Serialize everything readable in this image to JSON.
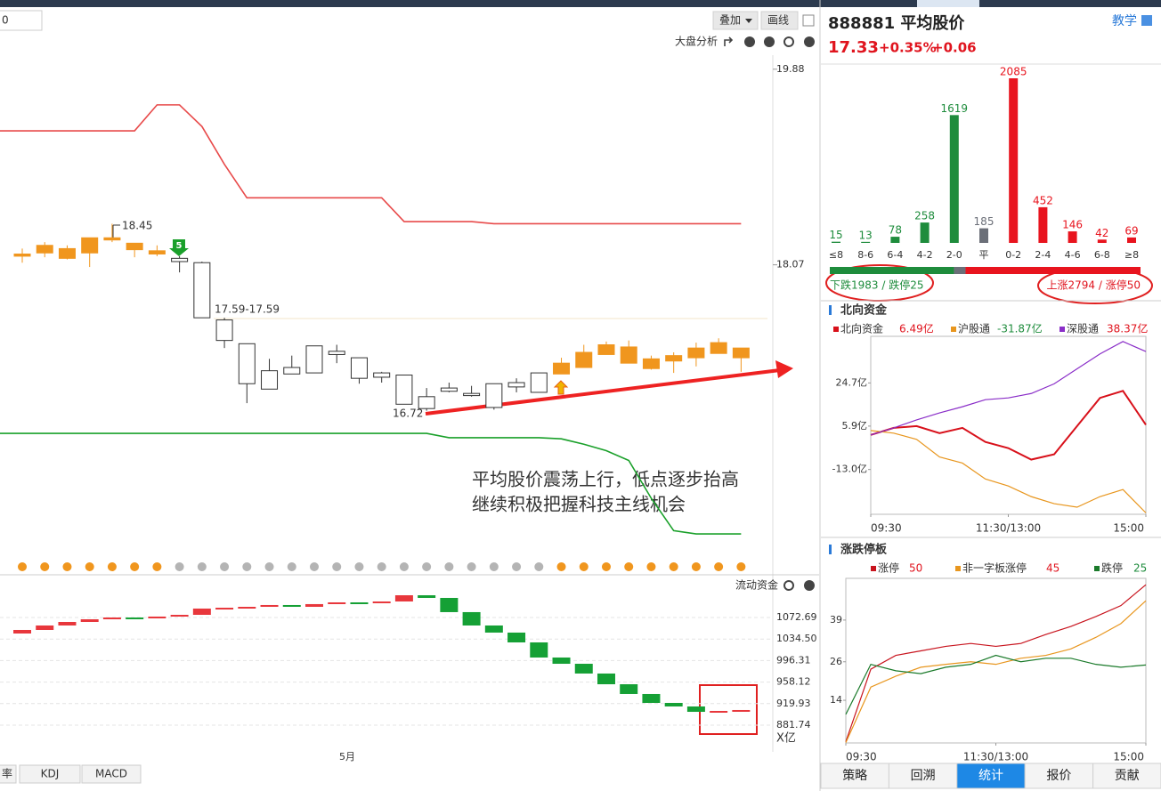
{
  "toolbar": {
    "field": "0",
    "overlay": "叠加",
    "draw": "画线",
    "market_analysis": "大盘分析"
  },
  "kline": {
    "type": "candlestick",
    "ylim": [
      15.35,
      20.01
    ],
    "yticks": [
      19.88,
      18.07
    ],
    "up_color": "#f0961e",
    "down_color": "#ffffff",
    "open": [
      18.15,
      18.18,
      18.13,
      18.18,
      18.3,
      18.21,
      18.17,
      18.13,
      18.09,
      17.56,
      17.34,
      17.09,
      17.12,
      17.32,
      17.27,
      17.21,
      17.07,
      17.05,
      16.85,
      16.93,
      16.88,
      16.97,
      16.98,
      17.07,
      17.06,
      17.12,
      17.24,
      17.16,
      17.11,
      17.18,
      17.21,
      17.25,
      17.21
    ],
    "high": [
      18.22,
      18.28,
      18.25,
      18.32,
      18.45,
      18.27,
      18.25,
      18.15,
      18.1,
      17.58,
      17.34,
      17.2,
      17.23,
      17.32,
      17.33,
      17.21,
      17.08,
      17.05,
      16.93,
      16.98,
      16.95,
      16.97,
      17.02,
      17.07,
      17.21,
      17.33,
      17.36,
      17.37,
      17.23,
      17.26,
      17.35,
      17.39,
      17.3
    ],
    "low": [
      18.09,
      18.14,
      18.12,
      18.05,
      18.28,
      18.14,
      18.15,
      18.0,
      17.58,
      17.3,
      16.79,
      16.92,
      17.06,
      17.07,
      17.16,
      16.97,
      16.98,
      16.78,
      16.72,
      16.89,
      16.85,
      16.73,
      16.89,
      16.89,
      17.06,
      17.12,
      17.24,
      17.16,
      17.1,
      17.07,
      17.13,
      17.25,
      17.08
    ],
    "close": [
      18.17,
      18.25,
      18.22,
      18.32,
      18.32,
      18.27,
      18.2,
      18.1,
      17.58,
      17.37,
      16.97,
      16.92,
      17.06,
      17.07,
      17.24,
      17.02,
      17.03,
      16.78,
      16.74,
      16.9,
      16.86,
      16.75,
      16.94,
      16.89,
      17.16,
      17.26,
      17.33,
      17.31,
      17.2,
      17.23,
      17.3,
      17.35,
      17.3
    ],
    "upper_band": {
      "color": "#e84a4a",
      "values": [
        19.31,
        19.31,
        19.31,
        19.31,
        19.31,
        19.31,
        19.55,
        19.55,
        19.35,
        19.0,
        18.69,
        18.69,
        18.69,
        18.69,
        18.69,
        18.69,
        18.69,
        18.47,
        18.47,
        18.47,
        18.47,
        18.45,
        18.45,
        18.45,
        18.45,
        18.45,
        18.45,
        18.45,
        18.45,
        18.45,
        18.45,
        18.45,
        18.45
      ]
    },
    "lower_band": {
      "color": "#1aa02a",
      "values": [
        16.51,
        16.51,
        16.51,
        16.51,
        16.51,
        16.51,
        16.51,
        16.51,
        16.51,
        16.51,
        16.51,
        16.51,
        16.51,
        16.51,
        16.51,
        16.51,
        16.51,
        16.51,
        16.51,
        16.47,
        16.47,
        16.47,
        16.47,
        16.47,
        16.46,
        16.41,
        16.35,
        16.26,
        15.91,
        15.61,
        15.58,
        15.58,
        15.58
      ]
    },
    "high_label": "18.45",
    "gap_label": "17.59-17.59",
    "low_label": "16.72",
    "signal_mark": "5",
    "note": [
      "平均股价震荡上行，低点逐步抬高",
      "继续积极把握科技主线机会"
    ],
    "dot_colors": [
      "#f0961e",
      "#f0961e",
      "#f0961e",
      "#f0961e",
      "#f0961e",
      "#f0961e",
      "#f0961e",
      "#b4b4b4",
      "#b4b4b4",
      "#b4b4b4",
      "#b4b4b4",
      "#b4b4b4",
      "#b4b4b4",
      "#b4b4b4",
      "#b4b4b4",
      "#b4b4b4",
      "#b4b4b4",
      "#b4b4b4",
      "#b4b4b4",
      "#b4b4b4",
      "#b4b4b4",
      "#b4b4b4",
      "#b4b4b4",
      "#b4b4b4",
      "#f0961e",
      "#f0961e",
      "#f0961e",
      "#f0961e",
      "#f0961e",
      "#f0961e",
      "#f0961e",
      "#f0961e",
      "#f0961e"
    ]
  },
  "flow": {
    "type": "waterfall",
    "title": "流动资金",
    "ylim": [
      842.3,
      1142.1
    ],
    "yticks": [
      1072.69,
      {
        "value": 1034.5,
        "label": "1034.50"
      },
      996.31,
      958.12,
      919.93,
      881.74
    ],
    "unit": "X亿",
    "x_label": "5月",
    "up_color": "#e8373c",
    "down_color": "#15a035",
    "levels": [
      1050.6,
      1058.5,
      1064.8,
      1069.5,
      1072.7,
      1071.1,
      1074.3,
      1077.4,
      1088.5,
      1090.0,
      1091.6,
      1094.8,
      1091.6,
      1096.4,
      1099.5,
      1098.0,
      1101.1,
      1112.1,
      1107.4,
      1082.2,
      1058.5,
      1045.9,
      1028.5,
      1001.7,
      990.6,
      973.3,
      954.3,
      937.0,
      921.2,
      914.9,
      905.4,
      907.0,
      908.6
    ]
  },
  "indicator_tabs": [
    "率",
    "KDJ",
    "MACD"
  ],
  "quote": {
    "name": "888881 平均股价",
    "tutorial": "教学",
    "price": "17.33",
    "pct": "+0.35%",
    "change": "+0.06"
  },
  "distribution": {
    "type": "bar",
    "categories": [
      "≤8",
      "8-6",
      "6-4",
      "4-2",
      "2-0",
      "平",
      "0-2",
      "2-4",
      "4-6",
      "6-8",
      "≥8"
    ],
    "values": [
      15,
      13,
      78,
      258,
      1619,
      185,
      2085,
      452,
      146,
      42,
      69
    ],
    "colors": [
      "#1e8c3c",
      "#1e8c3c",
      "#1e8c3c",
      "#1e8c3c",
      "#1e8c3c",
      "#6b6f78",
      "#e8141e",
      "#e8141e",
      "#e8141e",
      "#e8141e",
      "#e8141e"
    ],
    "down_label": "下跌1983 / 跌停25",
    "up_label": "上涨2794 / 涨停50"
  },
  "north": {
    "type": "line",
    "title": "北向资金",
    "xlim": [
      0,
      240
    ],
    "xticks": [
      {
        "value": 0,
        "label": "09:30"
      },
      {
        "value": 120,
        "label": "11:30/13:00"
      },
      {
        "value": 240,
        "label": "15:00"
      }
    ],
    "ylim": [
      -32.5,
      45.0
    ],
    "yticks": [
      {
        "value": 24.7,
        "label": "24.7亿"
      },
      {
        "value": 5.9,
        "label": "5.9亿"
      },
      {
        "value": -13.0,
        "label": "-13.0亿"
      }
    ],
    "x": [
      0,
      20,
      40,
      60,
      80,
      100,
      120,
      140,
      160,
      180,
      200,
      220,
      240
    ],
    "series": [
      {
        "name": "北向资金",
        "color": "#d8101a",
        "value_label": "6.49亿",
        "values": [
          2.06,
          5.13,
          5.9,
          2.83,
          5.13,
          -1.0,
          -3.69,
          -8.68,
          -6.38,
          5.9,
          18.18,
          21.25,
          6.49
        ]
      },
      {
        "name": "沪股通",
        "color": "#e8961e",
        "value_label": "-31.87亿",
        "values": [
          3.98,
          2.83,
          0.14,
          -7.53,
          -10.21,
          -17.12,
          -20.19,
          -24.8,
          -27.87,
          -29.4,
          -24.8,
          -21.73,
          -31.87
        ]
      },
      {
        "name": "深股通",
        "color": "#8a2ec8",
        "value_label": "38.37亿",
        "values": [
          2.06,
          5.13,
          8.59,
          11.66,
          14.34,
          17.41,
          18.18,
          20.1,
          24.32,
          30.84,
          37.36,
          42.74,
          38.37
        ]
      }
    ]
  },
  "limits": {
    "type": "line",
    "title": "涨跌停板",
    "xlim": [
      0,
      240
    ],
    "xticks": [
      {
        "value": 0,
        "label": "09:30"
      },
      {
        "value": 120,
        "label": "11:30/13:00"
      },
      {
        "value": 240,
        "label": "15:00"
      }
    ],
    "ylim": [
      0.7,
      52.0
    ],
    "yticks": [
      39,
      26,
      14
    ],
    "x": [
      0,
      20,
      40,
      60,
      80,
      100,
      120,
      140,
      160,
      180,
      200,
      220,
      240
    ],
    "series": [
      {
        "name": "涨停",
        "color": "#c8141e",
        "values": [
          1.1,
          23.7,
          28.0,
          29.4,
          30.8,
          31.7,
          30.8,
          31.7,
          34.5,
          37.0,
          40.1,
          43.5,
          50
        ]
      },
      {
        "name": "非一字板涨停",
        "color": "#e8961e",
        "values": [
          0.8,
          18.1,
          21.5,
          24.3,
          25.2,
          26.0,
          25.2,
          27.1,
          28.0,
          30.0,
          33.6,
          37.9,
          45
        ]
      },
      {
        "name": "跌停",
        "color": "#1a7a2a",
        "values": [
          9.6,
          25.2,
          23.2,
          22.3,
          24.3,
          25.2,
          28.0,
          26.0,
          27.1,
          27.1,
          25.2,
          24.3,
          25
        ]
      }
    ]
  },
  "tabs": {
    "items": [
      "策略",
      "回溯",
      "统计",
      "报价",
      "贡献"
    ],
    "active": 2
  }
}
